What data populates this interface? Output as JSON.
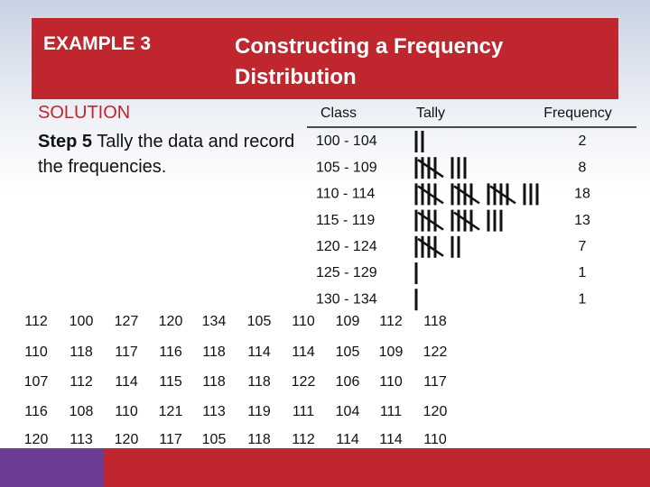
{
  "header": {
    "label": "EXAMPLE 3",
    "title": "Constructing a Frequency Distribution"
  },
  "solution": {
    "heading": "SOLUTION",
    "step": "Step 5",
    "text": "Tally the data and record the frequencies."
  },
  "table": {
    "columns": [
      "Class",
      "Tally",
      "Frequency"
    ],
    "rows": [
      {
        "class": "100 - 104",
        "frequency": 2
      },
      {
        "class": "105 - 109",
        "frequency": 8
      },
      {
        "class": "110 - 114",
        "frequency": 18
      },
      {
        "class": "115 - 119",
        "frequency": 13
      },
      {
        "class": "120 - 124",
        "frequency": 7
      },
      {
        "class": "125 - 129",
        "frequency": 1
      },
      {
        "class": "130 - 134",
        "frequency": 1
      }
    ]
  },
  "data": [
    [
      112,
      100,
      127,
      120,
      134,
      105,
      110,
      109,
      112,
      118
    ],
    [
      110,
      118,
      117,
      116,
      118,
      114,
      114,
      105,
      109,
      122
    ],
    [
      107,
      112,
      114,
      115,
      118,
      118,
      122,
      106,
      110,
      117
    ],
    [
      116,
      108,
      110,
      121,
      113,
      119,
      111,
      104,
      111,
      120
    ],
    [
      120,
      113,
      120,
      117,
      105,
      118,
      112,
      114,
      114,
      110
    ]
  ]
}
